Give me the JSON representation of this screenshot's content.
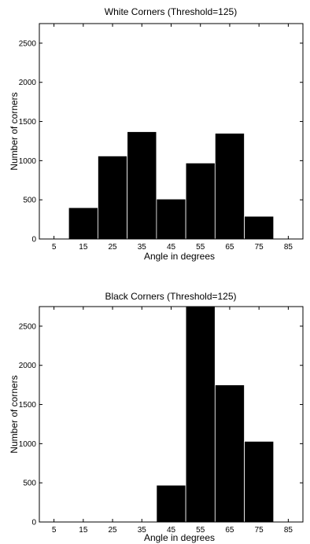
{
  "chart_data": [
    {
      "type": "bar",
      "title": "White Corners  (Threshold=125)",
      "xlabel": "Angle in degrees",
      "ylabel": "Number of corners",
      "xlim": [
        0,
        90
      ],
      "ylim": [
        0,
        2750
      ],
      "xticks": [
        5,
        15,
        25,
        35,
        45,
        55,
        65,
        75,
        85
      ],
      "yticks": [
        0,
        500,
        1000,
        1500,
        2000,
        2500
      ],
      "bin_width": 10,
      "x": [
        15,
        25,
        35,
        45,
        55,
        65,
        75
      ],
      "values": [
        400,
        1060,
        1370,
        510,
        970,
        1350,
        290
      ],
      "grid": false,
      "bar_color": "#000000"
    },
    {
      "type": "bar",
      "title": "Black Corners  (Threshold=125)",
      "xlabel": "Angle in degrees",
      "ylabel": "Number of corners",
      "xlim": [
        0,
        90
      ],
      "ylim": [
        0,
        2750
      ],
      "xticks": [
        5,
        15,
        25,
        35,
        45,
        55,
        65,
        75,
        85
      ],
      "yticks": [
        0,
        500,
        1000,
        1500,
        2000,
        2500
      ],
      "bin_width": 10,
      "x": [
        45,
        55,
        65,
        75
      ],
      "values": [
        470,
        2750,
        1750,
        1030
      ],
      "grid": false,
      "bar_color": "#000000"
    }
  ]
}
